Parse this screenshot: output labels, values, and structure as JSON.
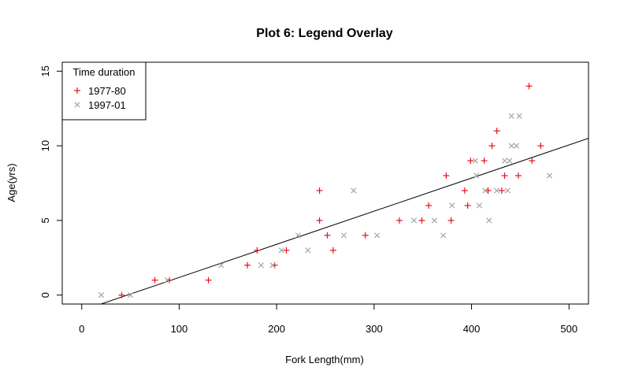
{
  "chart_data": {
    "type": "scatter",
    "title": "Plot 6: Legend Overlay",
    "xlabel": "Fork Length(mm)",
    "ylabel": "Age(yrs)",
    "xlim": [
      -20,
      520
    ],
    "ylim": [
      -0.6,
      15.6
    ],
    "xticks": [
      0,
      100,
      200,
      300,
      400,
      500
    ],
    "yticks": [
      0,
      5,
      10,
      15
    ],
    "grid": false,
    "legend": {
      "title": "Time duration",
      "position": "top-left",
      "entries": [
        "1977-80",
        "1997-01"
      ]
    },
    "series": [
      {
        "name": "1977-80",
        "marker": "+",
        "color": "#e8101c",
        "points": [
          [
            41,
            0
          ],
          [
            75,
            1
          ],
          [
            90,
            1
          ],
          [
            130,
            1
          ],
          [
            170,
            2
          ],
          [
            180,
            3
          ],
          [
            198,
            2
          ],
          [
            210,
            3
          ],
          [
            244,
            7
          ],
          [
            244,
            5
          ],
          [
            252,
            4
          ],
          [
            258,
            3
          ],
          [
            291,
            4
          ],
          [
            326,
            5
          ],
          [
            349,
            5
          ],
          [
            356,
            6
          ],
          [
            374,
            8
          ],
          [
            379,
            5
          ],
          [
            393,
            7
          ],
          [
            396,
            6
          ],
          [
            399,
            9
          ],
          [
            413,
            9
          ],
          [
            417,
            7
          ],
          [
            421,
            10
          ],
          [
            426,
            11
          ],
          [
            431,
            7
          ],
          [
            434,
            8
          ],
          [
            448,
            8
          ],
          [
            459,
            14
          ],
          [
            462,
            9
          ],
          [
            471,
            10
          ]
        ]
      },
      {
        "name": "1997-01",
        "marker": "x",
        "color": "#a6a6a6",
        "points": [
          [
            20,
            0
          ],
          [
            50,
            0
          ],
          [
            88,
            1
          ],
          [
            143,
            2
          ],
          [
            184,
            2
          ],
          [
            196,
            2
          ],
          [
            205,
            3
          ],
          [
            222,
            4
          ],
          [
            232,
            3
          ],
          [
            269,
            4
          ],
          [
            279,
            7
          ],
          [
            303,
            4
          ],
          [
            341,
            5
          ],
          [
            362,
            5
          ],
          [
            371,
            4
          ],
          [
            380,
            6
          ],
          [
            404,
            9
          ],
          [
            405,
            8
          ],
          [
            408,
            6
          ],
          [
            414,
            7
          ],
          [
            418,
            5
          ],
          [
            426,
            7
          ],
          [
            434,
            9
          ],
          [
            437,
            7
          ],
          [
            439,
            9
          ],
          [
            441,
            12
          ],
          [
            441,
            10
          ],
          [
            446,
            10
          ],
          [
            449,
            12
          ],
          [
            480,
            8
          ]
        ]
      }
    ],
    "trendline": {
      "type": "linear",
      "intercept": -1.04,
      "slope": 0.0222,
      "color": "#000000"
    }
  }
}
